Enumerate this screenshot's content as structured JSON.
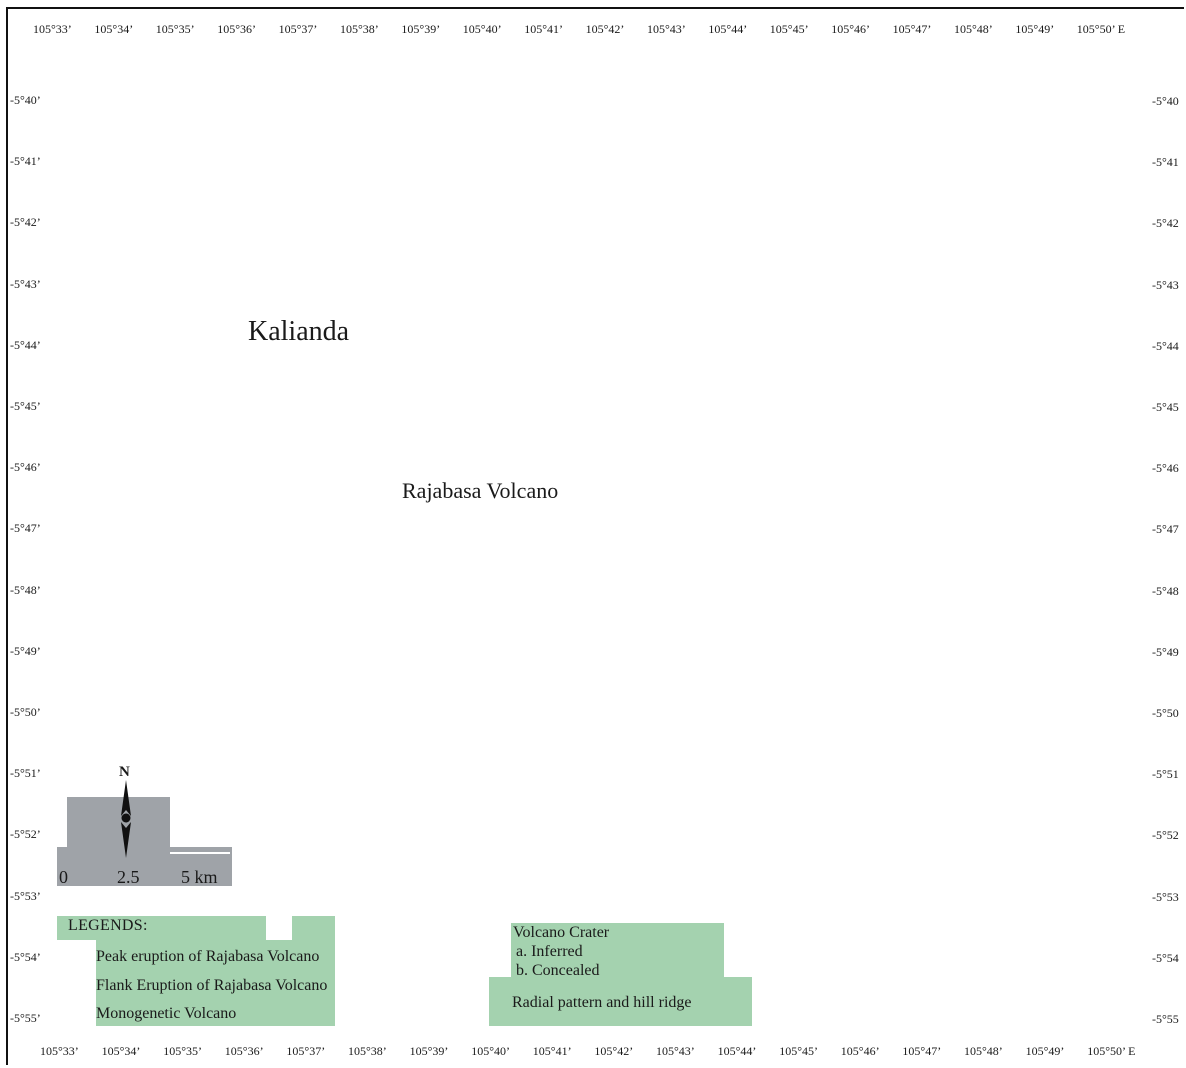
{
  "graticule": {
    "longitude_top": [
      "105°33’",
      "105°34’",
      "105°35’",
      "105°36’",
      "105°37’",
      "105°38’",
      "105°39’",
      "105°40’",
      "105°41’",
      "105°42’",
      "105°43’",
      "105°44’",
      "105°45’",
      "105°46’",
      "105°47’",
      "105°48’",
      "105°49’",
      "105°50’ E"
    ],
    "longitude_bottom": [
      "105°33’",
      "105°34’",
      "105°35’",
      "105°36’",
      "105°37’",
      "105°38’",
      "105°39’",
      "105°40’",
      "105°41’",
      "105°42’",
      "105°43’",
      "105°44’",
      "105°45’",
      "105°46’",
      "105°47’",
      "105°48’",
      "105°49’",
      "105°50’ E"
    ],
    "latitude_left": [
      "-5°40’",
      "-5°41’",
      "-5°42’",
      "-5°43’",
      "-5°44’",
      "-5°45’",
      "-5°46’",
      "-5°47’",
      "-5°48’",
      "-5°49’",
      "-5°50’",
      "-5°51’",
      "-5°52’",
      "-5°53’",
      "-5°54’",
      "-5°55’"
    ],
    "latitude_right": [
      "-5°40",
      "-5°41",
      "-5°42",
      "-5°43",
      "-5°44",
      "-5°45",
      "-5°46",
      "-5°47",
      "-5°48",
      "-5°49",
      "-5°50",
      "-5°51",
      "-5°52",
      "-5°53",
      "-5°54",
      "-5°55"
    ]
  },
  "places": {
    "town": "Kalianda",
    "volcano": "Rajabasa Volcano"
  },
  "north_arrow": {
    "label": "N"
  },
  "scale_bar": {
    "labels": [
      "0",
      "2.5",
      "5 km"
    ]
  },
  "legend": {
    "title": "LEGENDS:",
    "items": [
      "Peak eruption of Rajabasa Volcano",
      "Flank Eruption of Rajabasa Volcano",
      "Monogenetic Volcano"
    ],
    "crater": {
      "title": "Volcano Crater",
      "a": "a. Inferred",
      "b": "b. Concealed"
    },
    "radial": "Radial pattern and hill ridge"
  },
  "colors": {
    "legend_patch": "#a4d2af",
    "scale_patch": "#9fa3a8",
    "frame": "#111111"
  }
}
